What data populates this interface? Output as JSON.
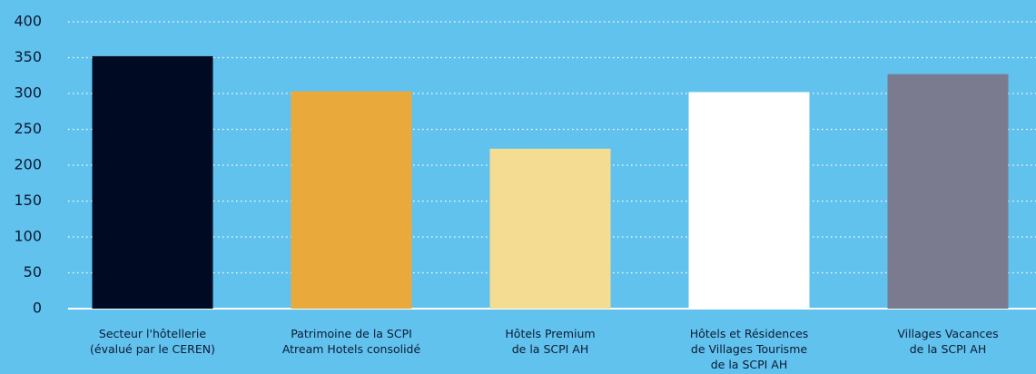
{
  "chart_data": {
    "type": "bar",
    "categories": [
      [
        "Secteur l'hôtellerie",
        "(évalué par le CEREN)"
      ],
      [
        "Patrimoine de la SCPI",
        "Atream Hotels consolidé"
      ],
      [
        "Hôtels Premium",
        "de la SCPI AH"
      ],
      [
        "Hôtels et Résidences",
        "de Villages Tourisme",
        "de la SCPI AH"
      ],
      [
        "Villages Vacances",
        "de la SCPI AH"
      ]
    ],
    "values": [
      352,
      303,
      223,
      302,
      327
    ],
    "colors": [
      "#000a22",
      "#eaaa3b",
      "#f5dc93",
      "#ffffff",
      "#7a7b8f"
    ],
    "ylim": [
      0,
      400
    ],
    "yticks": [
      0,
      50,
      100,
      150,
      200,
      250,
      300,
      350,
      400
    ],
    "grid": true
  }
}
